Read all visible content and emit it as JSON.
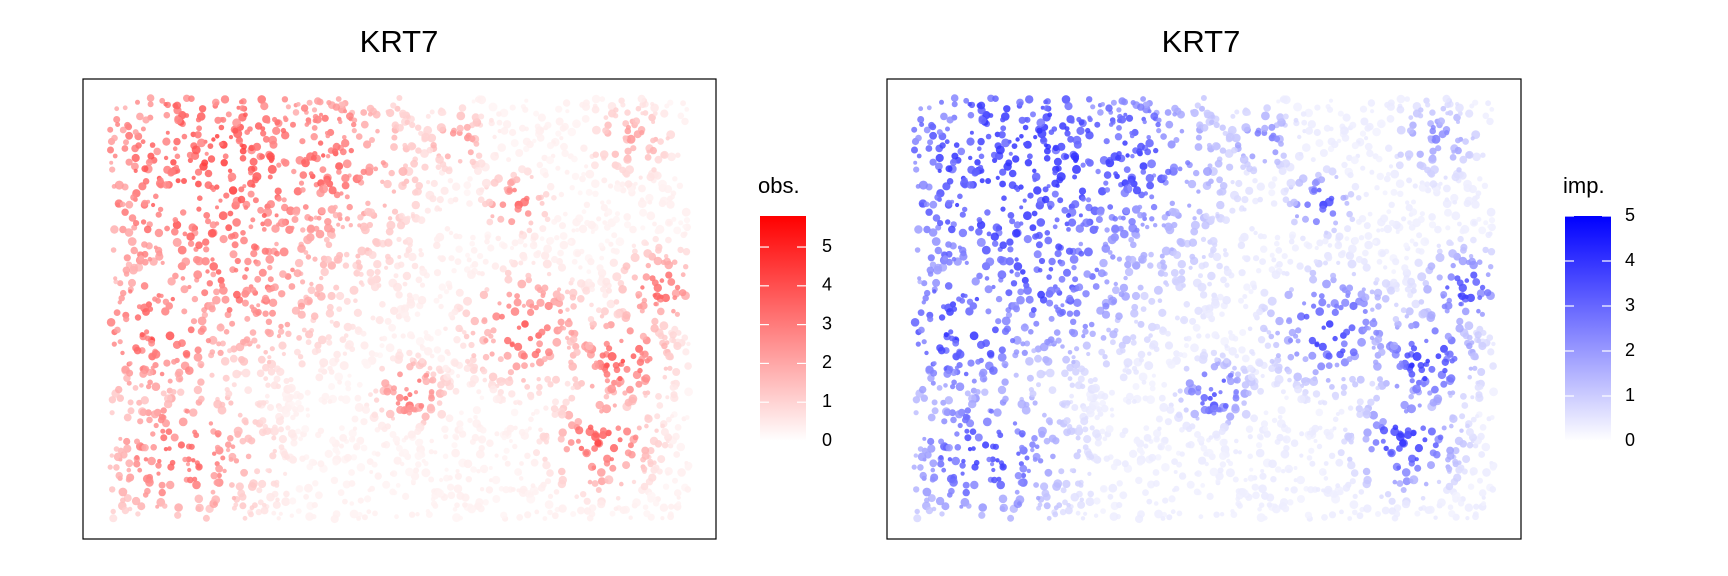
{
  "chart_data": [
    {
      "type": "spatial",
      "title": "KRT7",
      "legend_title": "obs.",
      "low_color": "#ffffff",
      "high_color": "#ff0000",
      "clim": [
        0,
        5.8
      ],
      "cticks": [
        0,
        1,
        2,
        3,
        4,
        5
      ]
    },
    {
      "type": "spatial",
      "title": "KRT7",
      "legend_title": "imp.",
      "low_color": "#ffffff",
      "high_color": "#0000ff",
      "clim": [
        0,
        5
      ],
      "cticks": [
        0,
        1,
        2,
        3,
        4,
        5
      ]
    }
  ]
}
